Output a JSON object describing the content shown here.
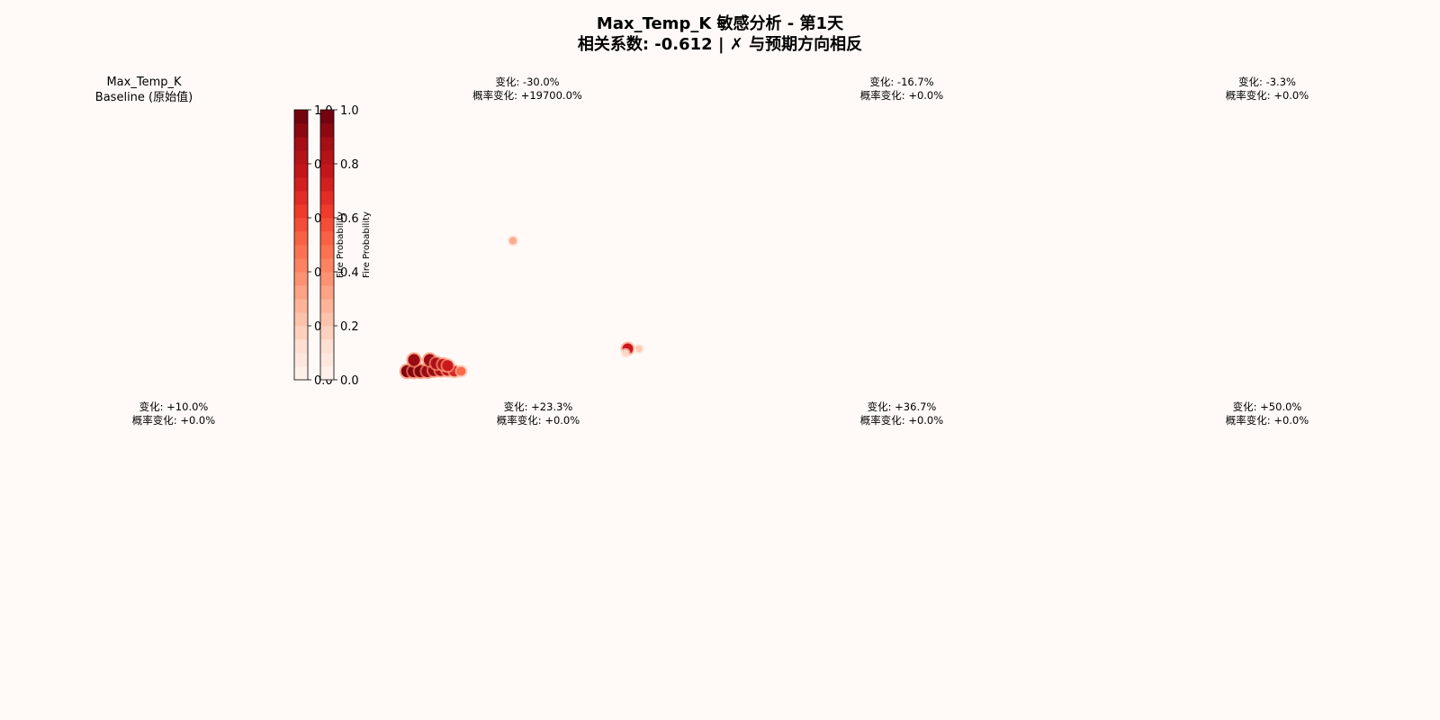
{
  "figure": {
    "title_line1": "Max_Temp_K 敏感分析 - 第1天",
    "title_line2": "相关系数: -0.612 | ✗ 与预期方向相反"
  },
  "colors": {
    "background": "#fffaf7",
    "cmap_low": "#fff5f0",
    "cmap_high": "#67000d"
  },
  "chart_data": {
    "type": "heatmap",
    "colormap": "Reds",
    "value_range": [
      0,
      1
    ],
    "colorbars": [
      {
        "label": "Fire Probability",
        "ticks": [
          "0.0",
          "0.2",
          "0.4",
          "0.6",
          "0.8",
          "1.0"
        ]
      },
      {
        "label": "Fire Probability",
        "ticks": [
          "0.0",
          "0.2",
          "0.4",
          "0.6",
          "0.8",
          "1.0"
        ]
      }
    ],
    "panels": [
      {
        "title_line1": "Max_Temp_K",
        "title_line2": "Baseline (原始值)",
        "hotspots": []
      },
      {
        "title_line1": "变化: -30.0%",
        "title_line2": "概率变化: +19700.0%",
        "hotspots": [
          {
            "x": 0.03,
            "y": 0.03,
            "p": 0.95
          },
          {
            "x": 0.06,
            "y": 0.03,
            "p": 0.95
          },
          {
            "x": 0.09,
            "y": 0.03,
            "p": 0.95
          },
          {
            "x": 0.12,
            "y": 0.03,
            "p": 0.9
          },
          {
            "x": 0.15,
            "y": 0.035,
            "p": 0.9
          },
          {
            "x": 0.18,
            "y": 0.035,
            "p": 0.85
          },
          {
            "x": 0.21,
            "y": 0.035,
            "p": 0.8
          },
          {
            "x": 0.24,
            "y": 0.03,
            "p": 0.7
          },
          {
            "x": 0.27,
            "y": 0.03,
            "p": 0.5
          },
          {
            "x": 0.06,
            "y": 0.08,
            "p": 0.9
          },
          {
            "x": 0.13,
            "y": 0.08,
            "p": 0.9
          },
          {
            "x": 0.16,
            "y": 0.065,
            "p": 0.85
          },
          {
            "x": 0.19,
            "y": 0.06,
            "p": 0.8
          },
          {
            "x": 0.21,
            "y": 0.055,
            "p": 0.75
          },
          {
            "x": 0.5,
            "y": 0.61,
            "p": 0.3
          },
          {
            "x": 1.01,
            "y": 0.13,
            "p": 0.75
          },
          {
            "x": 1.06,
            "y": 0.13,
            "p": 0.2
          },
          {
            "x": 1.0,
            "y": 0.11,
            "p": 0.15
          }
        ]
      },
      {
        "title_line1": "变化: -16.7%",
        "title_line2": "概率变化: +0.0%",
        "hotspots": []
      },
      {
        "title_line1": "变化: -3.3%",
        "title_line2": "概率变化: +0.0%",
        "hotspots": []
      },
      {
        "title_line1": "变化: +10.0%",
        "title_line2": "概率变化: +0.0%",
        "hotspots": []
      },
      {
        "title_line1": "变化: +23.3%",
        "title_line2": "概率变化: +0.0%",
        "hotspots": []
      },
      {
        "title_line1": "变化: +36.7%",
        "title_line2": "概率变化: +0.0%",
        "hotspots": []
      },
      {
        "title_line1": "变化: +50.0%",
        "title_line2": "概率变化: +0.0%",
        "hotspots": []
      }
    ]
  }
}
